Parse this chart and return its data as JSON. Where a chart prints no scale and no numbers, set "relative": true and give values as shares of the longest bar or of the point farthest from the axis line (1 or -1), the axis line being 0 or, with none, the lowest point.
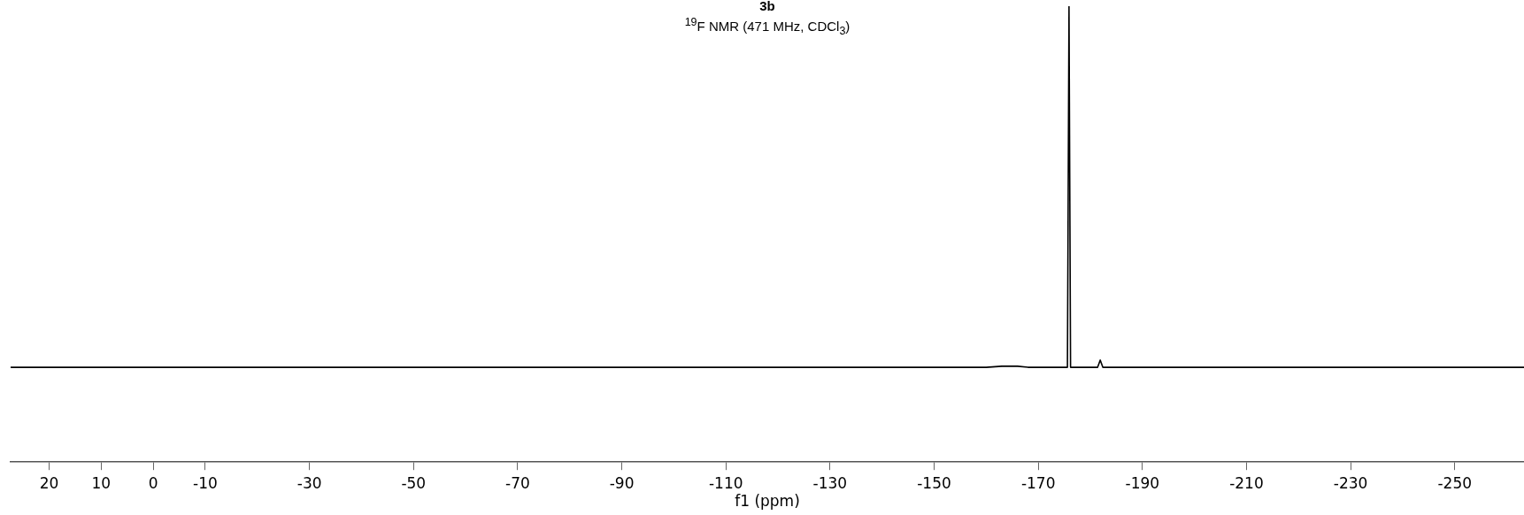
{
  "chart_data": {
    "type": "line",
    "title": "3b",
    "subtitle": "$^{19}$F NMR (471 MHz, CDCl$_{3}$)",
    "xlabel": "f1 (ppm)",
    "relative": true,
    "marker": "none",
    "line_style": "solid",
    "xlim": [
      27.4,
      -263.3
    ],
    "xticks": [
      20,
      10,
      0,
      -10,
      -30,
      -50,
      -70,
      -90,
      -110,
      -130,
      -150,
      -170,
      -190,
      -210,
      -230,
      -250
    ],
    "series": [
      {
        "color": "#000000",
        "x": [
          27.4,
          -160,
          -163,
          -166,
          -168,
          -175.6,
          -175.9,
          -176.2,
          -181.4,
          -181.9,
          -182.4,
          -263.3
        ],
        "values": [
          0,
          0,
          0.003,
          0.003,
          0,
          0,
          1,
          0,
          0,
          0.02,
          0,
          0
        ]
      }
    ]
  }
}
